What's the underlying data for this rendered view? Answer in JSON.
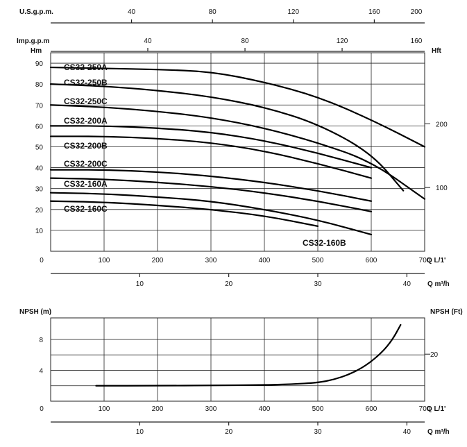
{
  "chart_data": [
    {
      "type": "line",
      "title": "",
      "xlabel": "Q L/1'",
      "ylabel": "Hm",
      "y2label": "Hft",
      "xlim": [
        0,
        700
      ],
      "ylim": [
        0,
        95
      ],
      "x_ticks": [
        0,
        100,
        200,
        300,
        400,
        500,
        600,
        700
      ],
      "y_ticks": [
        10,
        20,
        30,
        40,
        50,
        60,
        70,
        80,
        90
      ],
      "y2_ticks": [
        {
          "label": "100",
          "hm": 30.5
        },
        {
          "label": "200",
          "hm": 61
        }
      ],
      "grid": true,
      "top_axes": [
        {
          "label": "U.S.g.p.m.",
          "ticks": [
            {
              "label": "40",
              "q": 151.4
            },
            {
              "label": "80",
              "q": 302.8
            },
            {
              "label": "120",
              "q": 454.2
            },
            {
              "label": "160",
              "q": 605.7
            },
            {
              "label": "200",
              "q": 757.1
            }
          ]
        },
        {
          "label": "Imp.g.p.m",
          "ticks": [
            {
              "label": "40",
              "q": 181.8
            },
            {
              "label": "80",
              "q": 363.7
            },
            {
              "label": "120",
              "q": 545.5
            },
            {
              "label": "160",
              "q": 727.4
            }
          ]
        }
      ],
      "bottom_axis2": {
        "label": "Q m³/h",
        "ticks": [
          {
            "label": "10",
            "q": 166.7
          },
          {
            "label": "20",
            "q": 333.3
          },
          {
            "label": "30",
            "q": 500
          },
          {
            "label": "40",
            "q": 666.7
          }
        ]
      },
      "series": [
        {
          "name": "CS32-250A",
          "x": [
            0,
            100,
            200,
            300,
            400,
            500,
            600,
            700
          ],
          "y": [
            88,
            87.5,
            87,
            86,
            81,
            74,
            63,
            50
          ]
        },
        {
          "name": "CS32-250B",
          "x": [
            0,
            100,
            200,
            300,
            400,
            500,
            600,
            660
          ],
          "y": [
            80,
            79,
            77,
            74,
            69,
            61,
            47,
            29
          ]
        },
        {
          "name": "CS32-250C",
          "x": [
            0,
            100,
            200,
            300,
            400,
            500,
            600,
            700
          ],
          "y": [
            70,
            69,
            67,
            64,
            59,
            52,
            43,
            25
          ]
        },
        {
          "name": "CS32-200A",
          "x": [
            0,
            100,
            200,
            300,
            400,
            500,
            600
          ],
          "y": [
            60,
            60,
            59,
            57,
            53,
            47,
            40
          ]
        },
        {
          "name": "CS32-200B",
          "x": [
            0,
            100,
            200,
            300,
            400,
            500,
            600
          ],
          "y": [
            55,
            55,
            54,
            52,
            48,
            42,
            35
          ]
        },
        {
          "name": "CS32-200C",
          "x": [
            0,
            100,
            200,
            300,
            400,
            500,
            600
          ],
          "y": [
            39,
            39,
            38,
            36,
            33,
            29,
            24
          ]
        },
        {
          "name": "CS32-160A",
          "x": [
            0,
            100,
            200,
            300,
            400,
            500,
            600
          ],
          "y": [
            35,
            34.5,
            33,
            31,
            28,
            24,
            19
          ]
        },
        {
          "name": "CS32-160B",
          "x": [
            0,
            100,
            200,
            300,
            400,
            500,
            600
          ],
          "y": [
            28,
            27.5,
            26,
            24,
            20,
            15,
            8
          ]
        },
        {
          "name": "CS32-160C",
          "x": [
            0,
            100,
            200,
            300,
            400,
            500
          ],
          "y": [
            24,
            23.5,
            22,
            20,
            17,
            12
          ]
        }
      ]
    },
    {
      "type": "line",
      "title": "",
      "xlabel": "Q L/1'",
      "ylabel": "NPSH (m)",
      "y2label": "NPSH (Ft)",
      "xlim": [
        0,
        700
      ],
      "ylim": [
        0,
        10.8
      ],
      "x_ticks": [
        0,
        100,
        200,
        300,
        400,
        500,
        600,
        700
      ],
      "y_ticks": [
        4,
        8
      ],
      "y2_ticks": [
        {
          "label": "20",
          "m": 6.1
        }
      ],
      "grid": true,
      "bottom_axis2": {
        "label": "Q m³/h",
        "ticks": [
          {
            "label": "10",
            "q": 166.7
          },
          {
            "label": "20",
            "q": 333.3
          },
          {
            "label": "30",
            "q": 500
          },
          {
            "label": "40",
            "q": 666.7
          }
        ]
      },
      "series": [
        {
          "name": "",
          "x": [
            85,
            200,
            300,
            400,
            450,
            500,
            530,
            560,
            590,
            620,
            640,
            655
          ],
          "y": [
            2.0,
            2.0,
            2.05,
            2.1,
            2.2,
            2.4,
            2.8,
            3.5,
            4.6,
            6.3,
            8.0,
            9.9
          ]
        }
      ]
    }
  ]
}
